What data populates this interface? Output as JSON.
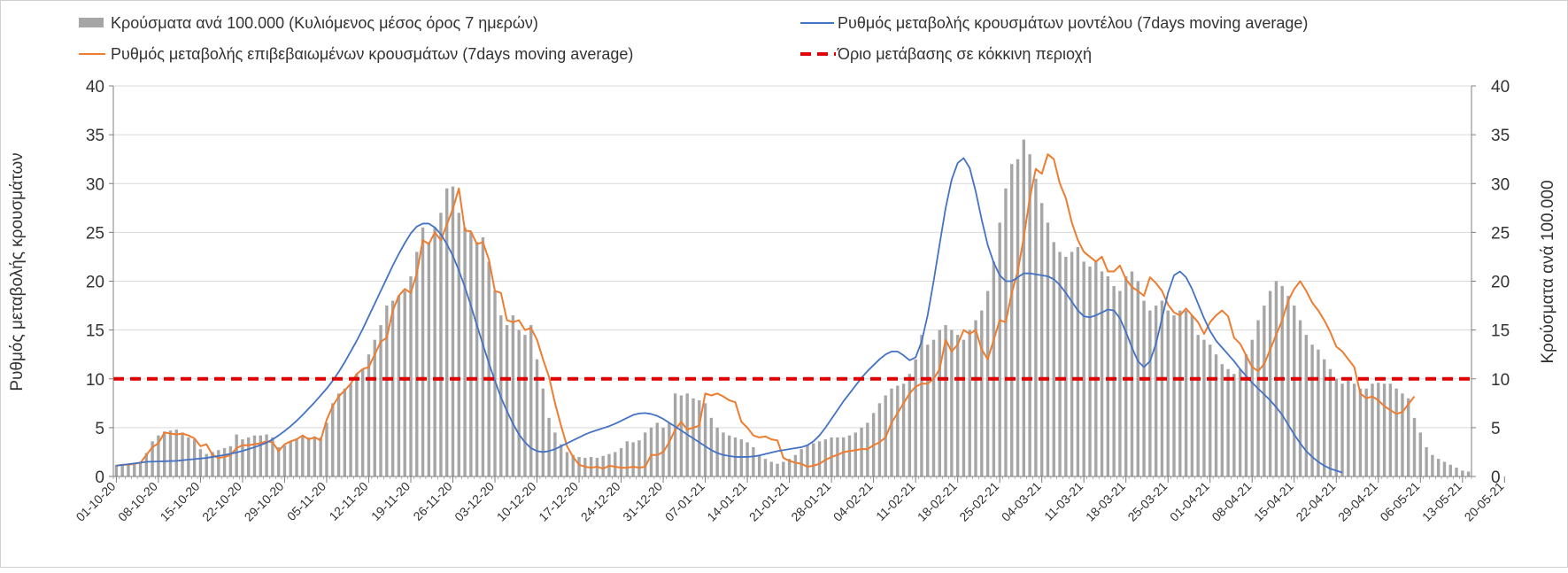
{
  "chart_data": {
    "type": "bar+line",
    "title": "",
    "ylabel_left": "Ρυθμός μεταβολής κρουσμάτων",
    "ylabel_right": "Κρούσματα ανά 100.000",
    "ylim": [
      0,
      40
    ],
    "yticks": [
      0,
      5,
      10,
      15,
      20,
      25,
      30,
      35,
      40
    ],
    "grid": true,
    "legend_position": "top",
    "x_start": "01-10-20",
    "x_tick_labels": [
      "01-10-20",
      "08-10-20",
      "15-10-20",
      "22-10-20",
      "29-10-20",
      "05-11-20",
      "12-11-20",
      "19-11-20",
      "26-11-20",
      "03-12-20",
      "10-12-20",
      "17-12-20",
      "24-12-20",
      "31-12-20",
      "07-01-21",
      "14-01-21",
      "21-01-21",
      "28-01-21",
      "04-02-21",
      "11-02-21",
      "18-02-21",
      "25-02-21",
      "04-03-21",
      "11-03-21",
      "18-03-21",
      "25-03-21",
      "01-04-21",
      "08-04-21",
      "15-04-21",
      "22-04-21",
      "29-04-21",
      "06-05-21",
      "13-05-21",
      "20-05-21"
    ],
    "colors": {
      "bars": "#a6a6a6",
      "model": "#4472c4",
      "confirmed": "#ed7d31",
      "threshold": "#e00000",
      "grid": "#d9d9d9",
      "axis": "#7f7f7f"
    },
    "series": [
      {
        "name": "Κρούσματα ανά 100.000 (Κυλιόμενος μέσος όρος 7 ημερών)",
        "kind": "bar",
        "axis": "right",
        "values": [
          1.2,
          1.2,
          1.3,
          1.3,
          1.4,
          2.4,
          3.6,
          4.2,
          4.6,
          4.7,
          4.8,
          4.5,
          4.0,
          3.8,
          2.8,
          2.3,
          2.5,
          2.7,
          2.9,
          3.1,
          4.3,
          3.8,
          4.0,
          4.2,
          4.2,
          4.3,
          4.0,
          3.0,
          3.2,
          3.6,
          3.9,
          4.1,
          4.0,
          4.1,
          4.0,
          5.5,
          7.5,
          8.5,
          9.0,
          9.5,
          10.5,
          11.0,
          12.5,
          14.0,
          15.5,
          17.5,
          18.0,
          18.5,
          19.0,
          20.5,
          23.0,
          25.5,
          24.0,
          25.5,
          27.0,
          29.5,
          29.7,
          27.0,
          25.5,
          25.0,
          24.0,
          24.5,
          22.0,
          19.0,
          16.5,
          15.5,
          16.5,
          15.0,
          14.5,
          15.5,
          12.0,
          9.0,
          6.0,
          4.5,
          3.3,
          2.5,
          2.2,
          2.0,
          1.9,
          2.0,
          1.9,
          2.1,
          2.3,
          2.5,
          2.9,
          3.6,
          3.5,
          3.7,
          4.5,
          5.0,
          5.5,
          5.0,
          5.5,
          8.5,
          8.3,
          8.5,
          8.0,
          7.8,
          7.5,
          6.0,
          5.0,
          4.5,
          4.2,
          4.0,
          3.8,
          3.5,
          3.0,
          2.2,
          1.8,
          1.5,
          1.3,
          1.5,
          1.8,
          2.2,
          2.8,
          3.2,
          3.4,
          3.6,
          3.8,
          4.0,
          4.0,
          4.0,
          4.2,
          4.5,
          5.0,
          5.5,
          6.5,
          7.5,
          8.3,
          9.0,
          9.3,
          9.5,
          10.5,
          12.0,
          14.5,
          13.5,
          14.0,
          15.0,
          15.5,
          15.0,
          14.5,
          14.0,
          15.0,
          16.0,
          17.0,
          19.0,
          22.0,
          26.0,
          29.5,
          32.0,
          32.5,
          34.5,
          33.0,
          30.5,
          28.0,
          26.0,
          24.0,
          23.0,
          22.5,
          23.0,
          23.5,
          22.0,
          21.5,
          22.0,
          21.0,
          20.5,
          19.5,
          19.0,
          20.5,
          21.0,
          20.0,
          18.0,
          17.0,
          17.5,
          18.0,
          17.0,
          16.5,
          17.0,
          17.0,
          16.5,
          14.5,
          14.0,
          13.5,
          12.5,
          11.5,
          11.0,
          10.5,
          11.0,
          12.5,
          14.0,
          16.0,
          17.5,
          19.0,
          20.0,
          19.5,
          18.5,
          17.5,
          16.0,
          14.5,
          13.5,
          13.0,
          12.0,
          11.0,
          10.0,
          9.5,
          9.8,
          9.5,
          9.0,
          9.0,
          9.5,
          9.6,
          9.5,
          9.5,
          9.0,
          8.5,
          8.0,
          6.0,
          4.5,
          3.0,
          2.2,
          1.8,
          1.5,
          1.2,
          0.9,
          0.6,
          0.5
        ]
      },
      {
        "name": "Ρυθμός μεταβολής κρουσμάτων μοντέλου (7days moving average)",
        "kind": "line",
        "axis": "left",
        "values": [
          1.1,
          1.18,
          1.26,
          1.34,
          1.42,
          1.5,
          1.52,
          1.54,
          1.56,
          1.58,
          1.6,
          1.66,
          1.72,
          1.78,
          1.84,
          1.9,
          2.0,
          2.1,
          2.2,
          2.32,
          2.46,
          2.62,
          2.8,
          3.0,
          3.22,
          3.46,
          3.8,
          4.2,
          4.65,
          5.15,
          5.7,
          6.3,
          6.95,
          7.6,
          8.3,
          9.0,
          9.8,
          10.7,
          11.7,
          12.8,
          13.9,
          15.1,
          16.4,
          17.7,
          19.0,
          20.3,
          21.6,
          22.8,
          23.9,
          24.9,
          25.6,
          25.9,
          25.9,
          25.5,
          24.8,
          23.8,
          22.6,
          21.1,
          19.4,
          17.5,
          15.5,
          13.5,
          11.6,
          9.8,
          8.1,
          6.7,
          5.4,
          4.3,
          3.5,
          2.9,
          2.6,
          2.5,
          2.6,
          2.8,
          3.1,
          3.4,
          3.7,
          4.0,
          4.3,
          4.55,
          4.75,
          4.95,
          5.15,
          5.4,
          5.7,
          6.0,
          6.3,
          6.45,
          6.5,
          6.4,
          6.2,
          5.9,
          5.5,
          5.1,
          4.7,
          4.3,
          3.9,
          3.5,
          3.1,
          2.7,
          2.4,
          2.2,
          2.1,
          2.0,
          2.0,
          2.0,
          2.05,
          2.15,
          2.3,
          2.45,
          2.6,
          2.7,
          2.8,
          2.9,
          3.0,
          3.2,
          3.6,
          4.2,
          5.0,
          5.9,
          6.8,
          7.7,
          8.5,
          9.3,
          10.1,
          10.8,
          11.4,
          12.0,
          12.5,
          12.8,
          12.8,
          12.4,
          11.9,
          12.2,
          13.8,
          16.5,
          20.0,
          23.8,
          27.5,
          30.4,
          32.1,
          32.6,
          31.6,
          29.2,
          26.3,
          23.7,
          21.9,
          20.6,
          20.0,
          20.0,
          20.4,
          20.8,
          20.8,
          20.7,
          20.6,
          20.5,
          20.2,
          19.6,
          18.8,
          17.9,
          17.0,
          16.4,
          16.3,
          16.5,
          16.8,
          17.1,
          17.0,
          16.2,
          14.8,
          13.2,
          11.8,
          11.2,
          11.8,
          13.6,
          16.2,
          18.8,
          20.6,
          21.0,
          20.4,
          19.2,
          17.7,
          16.2,
          14.9,
          13.9,
          13.2,
          12.5,
          11.8,
          11.0,
          10.3,
          9.6,
          9.0,
          8.4,
          7.8,
          7.1,
          6.3,
          5.3,
          4.3,
          3.4,
          2.6,
          2.0,
          1.5,
          1.1,
          0.8,
          0.6,
          0.4
        ]
      },
      {
        "name": "Ρυθμός μεταβολής επιβεβαιωμένων κρουσμάτων (7days moving average)",
        "kind": "line",
        "axis": "left",
        "values": [
          1.1,
          1.2,
          1.2,
          1.3,
          1.4,
          2.2,
          3.0,
          3.4,
          4.5,
          4.4,
          4.3,
          4.4,
          4.2,
          3.9,
          3.1,
          3.3,
          2.2,
          1.9,
          2.0,
          2.2,
          2.9,
          3.2,
          3.2,
          3.3,
          3.4,
          3.6,
          3.5,
          2.6,
          3.3,
          3.6,
          3.8,
          4.2,
          3.8,
          4.0,
          3.7,
          5.8,
          7.2,
          8.2,
          8.8,
          9.5,
          10.5,
          11.0,
          11.2,
          12.5,
          13.8,
          14.2,
          17.0,
          18.5,
          19.2,
          18.8,
          20.8,
          24.2,
          23.8,
          25.0,
          24.2,
          25.8,
          27.4,
          29.5,
          25.2,
          25.1,
          23.8,
          24.0,
          22.2,
          19.0,
          18.8,
          16.0,
          15.8,
          16.0,
          15.0,
          15.2,
          14.0,
          12.0,
          10.2,
          7.5,
          5.2,
          3.1,
          2.0,
          1.2,
          1.0,
          0.9,
          1.0,
          0.8,
          1.1,
          1.0,
          0.9,
          0.9,
          1.0,
          0.9,
          1.0,
          2.2,
          2.2,
          2.5,
          3.5,
          4.8,
          5.6,
          4.8,
          5.0,
          5.2,
          8.5,
          8.3,
          8.5,
          8.2,
          7.8,
          7.6,
          5.6,
          5.0,
          4.2,
          4.0,
          4.1,
          3.8,
          3.7,
          1.9,
          1.6,
          1.4,
          1.3,
          1.0,
          1.1,
          1.3,
          1.7,
          2.0,
          2.2,
          2.5,
          2.6,
          2.7,
          2.8,
          2.8,
          3.2,
          3.5,
          4.0,
          5.5,
          6.5,
          7.5,
          8.5,
          9.2,
          9.5,
          9.5,
          10.0,
          11.0,
          14.0,
          12.8,
          13.5,
          15.0,
          14.6,
          15.0,
          13.0,
          12.0,
          14.0,
          16.0,
          15.8,
          18.8,
          21.0,
          24.5,
          28.5,
          31.5,
          31.0,
          33.0,
          32.5,
          30.0,
          28.5,
          26.0,
          24.2,
          23.0,
          22.5,
          22.0,
          22.5,
          21.0,
          21.0,
          21.6,
          20.2,
          19.4,
          19.0,
          18.5,
          20.4,
          19.8,
          19.0,
          17.6,
          16.8,
          16.5,
          17.2,
          16.5,
          15.8,
          14.6,
          15.8,
          16.5,
          17.0,
          16.4,
          14.2,
          13.6,
          12.4,
          11.2,
          10.8,
          11.5,
          13.0,
          14.5,
          16.0,
          18.0,
          19.2,
          20.0,
          19.0,
          17.8,
          17.0,
          16.0,
          14.8,
          13.3,
          12.8,
          12.0,
          11.2,
          8.5,
          8.0,
          8.2,
          7.8,
          7.2,
          6.8,
          6.4,
          6.6,
          7.4,
          8.2
        ]
      },
      {
        "name": "Όριο μετάβασης σε κόκκινη περιοχή",
        "kind": "hline",
        "axis": "left",
        "value": 10
      }
    ]
  }
}
